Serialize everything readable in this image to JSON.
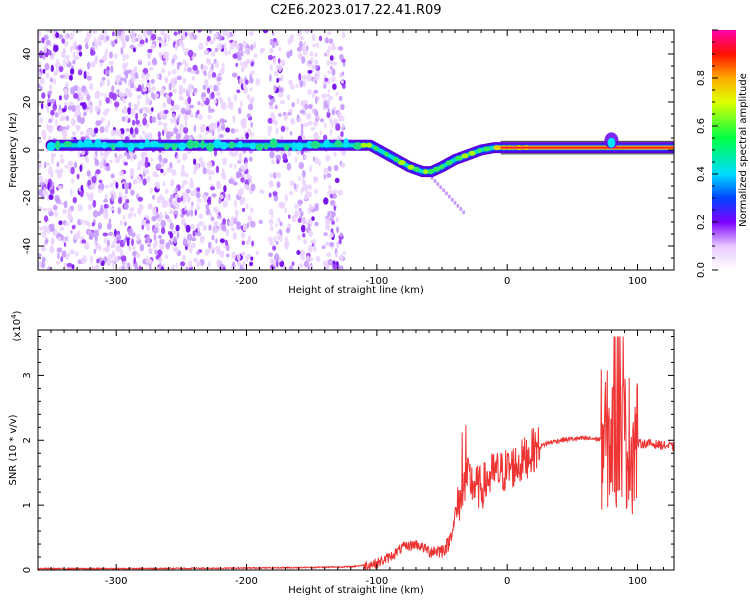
{
  "figure": {
    "title": "C2E6.2023.017.22.41.R09"
  },
  "chart_data": [
    {
      "type": "heatmap",
      "xlabel": "Height of straight line (km)",
      "ylabel": "Frequency (Hz)",
      "xlim": [
        -360,
        128
      ],
      "ylim": [
        -50,
        50
      ],
      "xticks": [
        -300,
        -200,
        -100,
        0,
        100
      ],
      "yticks": [
        -40,
        -20,
        0,
        20,
        40
      ],
      "colorbar": {
        "label": "Normalized spectral amplitude",
        "range": [
          0,
          1
        ],
        "ticks": [
          0.0,
          0.2,
          0.4,
          0.6,
          0.8
        ],
        "tick_labels": [
          "0.0",
          "0.2",
          "0.4",
          "0.6",
          "0.8"
        ]
      },
      "ridge": {
        "x": [
          -350,
          -300,
          -250,
          -200,
          -150,
          -120,
          -105,
          -95,
          -85,
          -75,
          -65,
          -58,
          -50,
          -40,
          -30,
          -20,
          -10,
          0,
          20,
          40,
          60,
          75,
          85,
          95,
          110,
          128
        ],
        "y": [
          2,
          2,
          2,
          2,
          2,
          2,
          2,
          -1,
          -4,
          -7,
          -9,
          -9,
          -7,
          -4,
          -2,
          0,
          1,
          1,
          1,
          1,
          1,
          1,
          1,
          1,
          1,
          1
        ]
      },
      "noise_region_x": [
        -360,
        -125
      ]
    },
    {
      "type": "line",
      "xlabel": "Height of straight line (km)",
      "ylabel": "SNR (10 * v/v)",
      "y_multiplier_label": "(x10",
      "y_multiplier_exp": "4",
      "y_multiplier_close": ")",
      "xlim": [
        -360,
        128
      ],
      "ylim": [
        0,
        3.7
      ],
      "xticks": [
        -300,
        -200,
        -100,
        0,
        100
      ],
      "yticks": [
        0,
        1,
        2,
        3
      ],
      "line_color": "#ee3333",
      "series": [
        {
          "x": [
            -360,
            -300,
            -200,
            -150,
            -120,
            -100,
            -90,
            -80,
            -70,
            -60,
            -50,
            -45,
            -40,
            -35,
            -30,
            -25,
            -20,
            -15,
            -10,
            -5,
            0,
            10,
            20,
            30,
            40,
            50,
            60,
            70,
            75,
            80,
            85,
            90,
            95,
            100,
            110,
            120,
            128
          ],
          "y": [
            0.02,
            0.02,
            0.03,
            0.04,
            0.05,
            0.1,
            0.2,
            0.35,
            0.4,
            0.3,
            0.3,
            0.4,
            0.8,
            1.2,
            1.4,
            1.3,
            1.25,
            1.4,
            1.5,
            1.5,
            1.55,
            1.65,
            1.85,
            1.95,
            2.0,
            2.02,
            2.03,
            2.02,
            2.0,
            2.0,
            2.05,
            2.0,
            1.95,
            1.95,
            1.95,
            1.92,
            1.9
          ]
        }
      ]
    }
  ]
}
